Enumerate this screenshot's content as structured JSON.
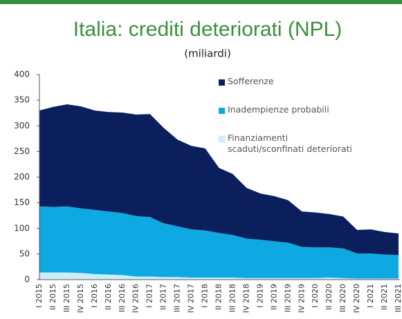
{
  "chart_data": {
    "type": "stacked_area",
    "title": "Italia: crediti deteriorati (NPL)",
    "subtitle": "(miliardi)",
    "categories": [
      "I 2015",
      "II 2015",
      "III 2015",
      "IV 2015",
      "I 2016",
      "II 2016",
      "III 2016",
      "IV 2016",
      "I 2017",
      "II 2017",
      "III 2017",
      "IV 2017",
      "I 2018",
      "II 2018",
      "III 2018",
      "IV 2018",
      "I 2019",
      "II 2019",
      "III 2019",
      "IV 2019",
      "I 2020",
      "II 2020",
      "III 2020",
      "IV 2020",
      "I 2021",
      "II 2021",
      "III 2021"
    ],
    "series": [
      {
        "name": "Sofferenze",
        "color": "#0b1f5c",
        "values": [
          187,
          195,
          199,
          199,
          194,
          194,
          196,
          198,
          201,
          186,
          169,
          163,
          160,
          127,
          119,
          99,
          90,
          88,
          83,
          69,
          68,
          65,
          62,
          46,
          47,
          44,
          42
        ]
      },
      {
        "name": "Inadempienze probabili",
        "color": "#0ea8e2",
        "values": [
          129,
          128,
          129,
          126,
          125,
          123,
          121,
          118,
          116,
          105,
          99,
          94,
          92,
          87,
          83,
          77,
          75,
          72,
          69,
          61,
          60,
          59,
          58,
          49,
          49,
          47,
          46
        ]
      },
      {
        "name": "Finanziamenti scaduti/sconfinati deteriorati",
        "color": "#cdeef8",
        "values": [
          14,
          14,
          14,
          13,
          11,
          10,
          9,
          6,
          6,
          5,
          5,
          4,
          4,
          4,
          4,
          3,
          3,
          3,
          3,
          3,
          3,
          4,
          3,
          2,
          2,
          2,
          2
        ]
      }
    ],
    "ylim": [
      0,
      400
    ],
    "yticks": [
      0,
      50,
      100,
      150,
      200,
      250,
      300,
      350,
      400
    ]
  }
}
